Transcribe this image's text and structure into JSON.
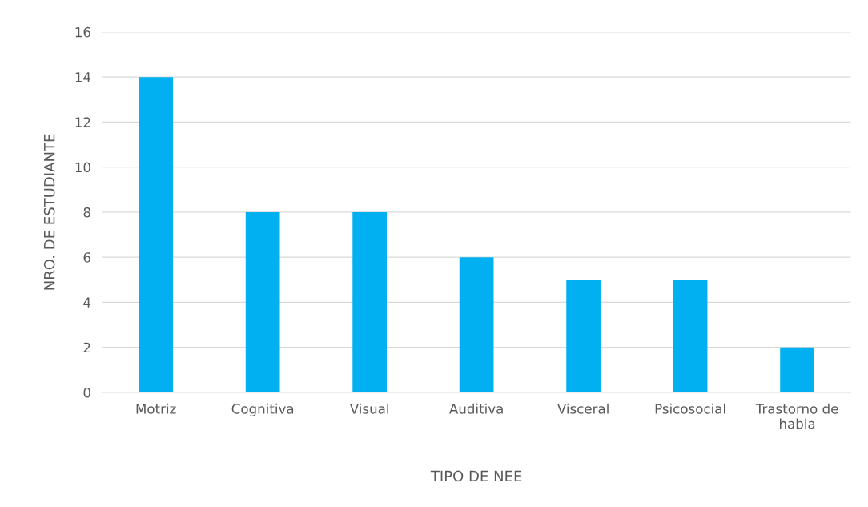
{
  "chart_data": {
    "type": "bar",
    "categories": [
      "Motriz",
      "Cognitiva",
      "Visual",
      "Auditiva",
      "Visceral",
      "Psicosocial",
      "Trastorno de habla"
    ],
    "values": [
      14,
      8,
      8,
      6,
      5,
      5,
      2
    ],
    "color": "#00b0f0",
    "xlabel": "TIPO DE NEE",
    "ylabel": "NRO. DE ESTUDIANTE",
    "ylim": [
      0,
      16
    ],
    "yticks": [
      0,
      2,
      4,
      6,
      8,
      10,
      12,
      14,
      16
    ],
    "grid": "y"
  }
}
